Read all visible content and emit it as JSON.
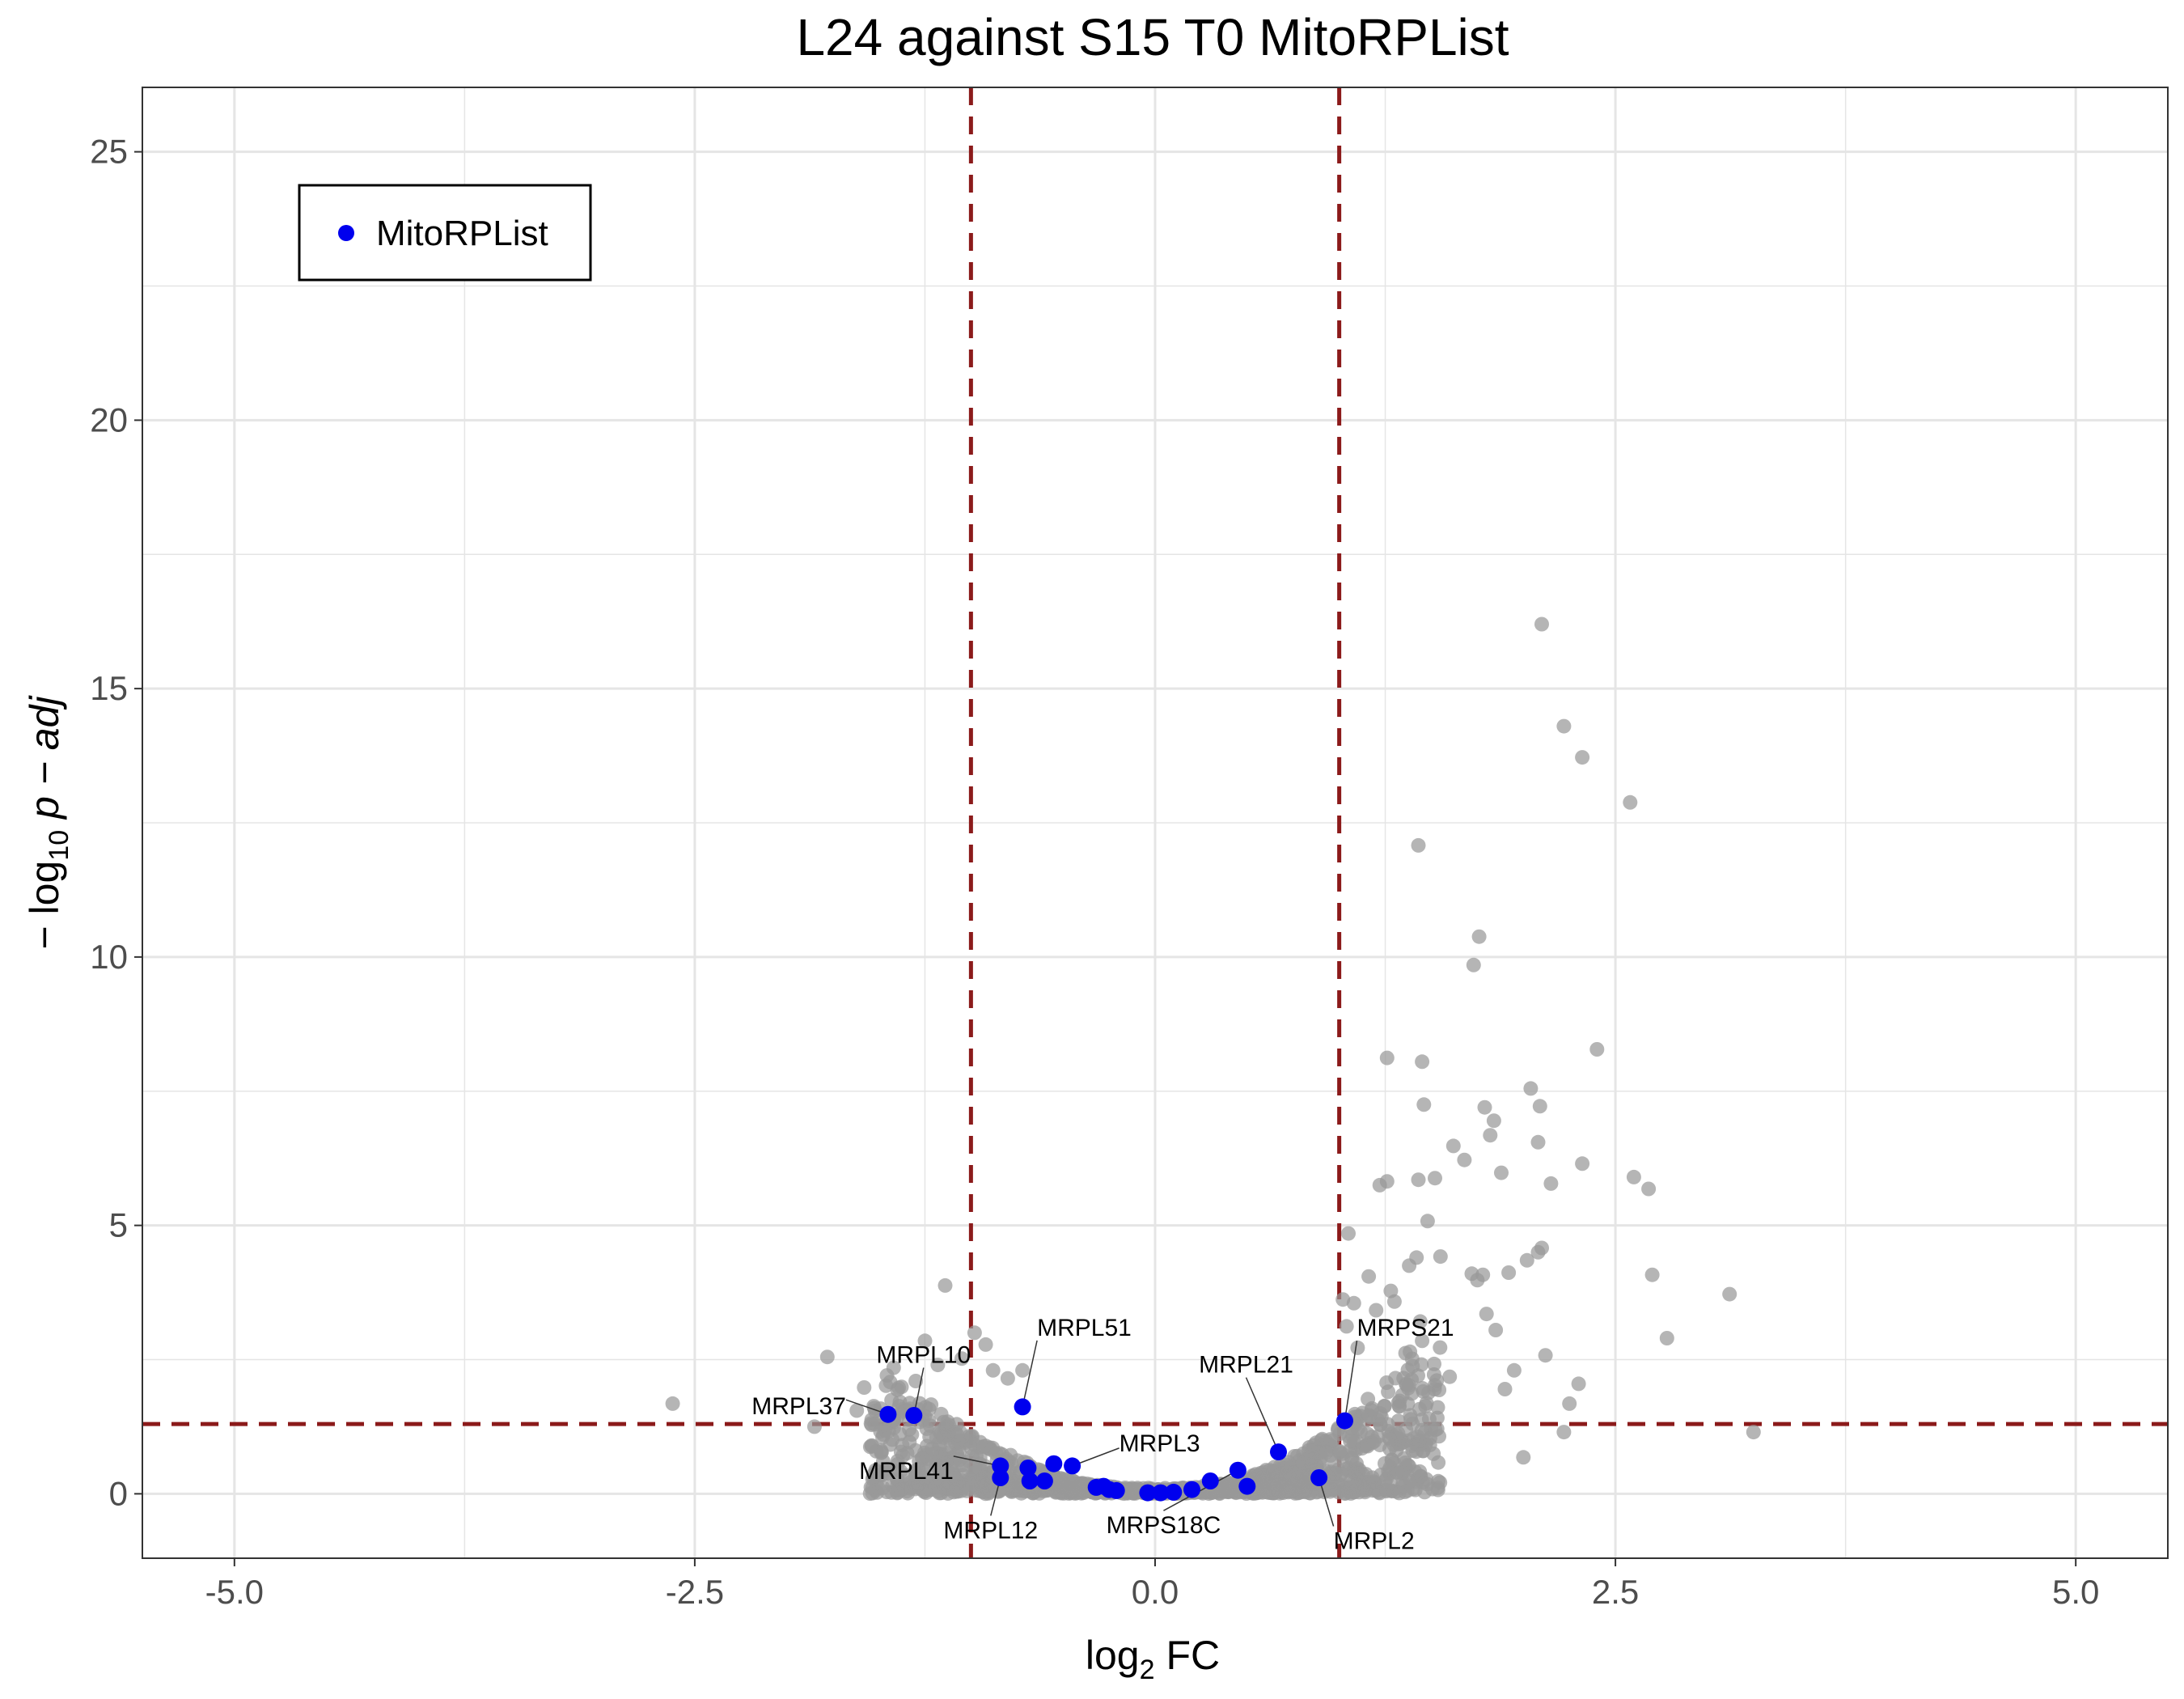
{
  "chart_data": {
    "type": "scatter",
    "title": "L24 against S15 T0 MitoRPList",
    "xlabel": {
      "main": "log",
      "sub": "2",
      "suffix": " FC"
    },
    "ylabel": {
      "prefix": "− log",
      "sub": "10",
      "suffix": " p − adj"
    },
    "xlim": [
      -5.5,
      5.5
    ],
    "ylim": [
      -1.2,
      26.2
    ],
    "x_ticks": [
      {
        "value": -5.0,
        "label": "-5.0"
      },
      {
        "value": -2.5,
        "label": "-2.5"
      },
      {
        "value": 0.0,
        "label": "0.0"
      },
      {
        "value": 2.5,
        "label": "2.5"
      },
      {
        "value": 5.0,
        "label": "5.0"
      }
    ],
    "y_ticks": [
      {
        "value": 0,
        "label": "0"
      },
      {
        "value": 5,
        "label": "5"
      },
      {
        "value": 10,
        "label": "10"
      },
      {
        "value": 15,
        "label": "15"
      },
      {
        "value": 20,
        "label": "20"
      },
      {
        "value": 25,
        "label": "25"
      }
    ],
    "grid": true,
    "thresholds": {
      "x": [
        -1.0,
        1.0
      ],
      "y": 1.3
    },
    "colors": {
      "background_points": "#999999",
      "highlight_points": "#0000ee",
      "threshold_lines": "#8b1a1a",
      "grid": "#e5e5e5"
    },
    "legend": {
      "position": "top-left",
      "entries": [
        "MitoRPList"
      ]
    },
    "series": [
      {
        "name": "MitoRPList",
        "points": [
          [
            -1.45,
            1.48
          ],
          [
            -1.31,
            1.46
          ],
          [
            -0.72,
            1.62
          ],
          [
            -0.84,
            0.52
          ],
          [
            -0.84,
            0.3
          ],
          [
            -0.69,
            0.48
          ],
          [
            -0.68,
            0.24
          ],
          [
            -0.6,
            0.24
          ],
          [
            -0.55,
            0.56
          ],
          [
            -0.45,
            0.52
          ],
          [
            -0.32,
            0.12
          ],
          [
            -0.28,
            0.14
          ],
          [
            -0.25,
            0.08
          ],
          [
            -0.21,
            0.06
          ],
          [
            -0.04,
            0.02
          ],
          [
            0.03,
            0.02
          ],
          [
            0.1,
            0.03
          ],
          [
            0.2,
            0.08
          ],
          [
            0.3,
            0.24
          ],
          [
            0.45,
            0.44
          ],
          [
            0.5,
            0.14
          ],
          [
            0.67,
            0.78
          ],
          [
            0.89,
            0.3
          ],
          [
            1.03,
            1.36
          ]
        ],
        "labels": [
          {
            "gene": "MRPL37",
            "x": -1.45,
            "y": 1.48
          },
          {
            "gene": "MRPL10",
            "x": -1.31,
            "y": 1.46
          },
          {
            "gene": "MRPL51",
            "x": -0.72,
            "y": 1.62
          },
          {
            "gene": "MRPL3",
            "x": -0.45,
            "y": 0.52
          },
          {
            "gene": "MRPL41",
            "x": -0.84,
            "y": 0.52
          },
          {
            "gene": "MRPL12",
            "x": -0.84,
            "y": 0.3
          },
          {
            "gene": "MRPS18C",
            "x": 0.45,
            "y": 0.44
          },
          {
            "gene": "MRPL21",
            "x": 0.67,
            "y": 0.78
          },
          {
            "gene": "MRPS21",
            "x": 1.03,
            "y": 1.36
          },
          {
            "gene": "MRPL2",
            "x": 0.89,
            "y": 0.3
          }
        ]
      }
    ],
    "background_outliers": [
      [
        -2.62,
        1.68
      ],
      [
        -1.85,
        1.25
      ],
      [
        -1.78,
        2.55
      ],
      [
        -1.62,
        1.55
      ],
      [
        -1.58,
        1.98
      ],
      [
        -1.48,
        1.28
      ],
      [
        -1.42,
        2.35
      ],
      [
        -1.3,
        2.1
      ],
      [
        -1.25,
        2.85
      ],
      [
        -1.18,
        2.4
      ],
      [
        -1.15,
        1.05
      ],
      [
        -1.14,
        3.88
      ],
      [
        -1.05,
        2.52
      ],
      [
        -0.98,
        3.0
      ],
      [
        -0.92,
        2.78
      ],
      [
        -0.88,
        2.3
      ],
      [
        -0.8,
        2.15
      ],
      [
        -0.72,
        2.3
      ],
      [
        1.02,
        3.62
      ],
      [
        1.04,
        3.12
      ],
      [
        1.05,
        4.85
      ],
      [
        1.08,
        3.55
      ],
      [
        1.1,
        2.72
      ],
      [
        1.16,
        4.05
      ],
      [
        1.2,
        3.42
      ],
      [
        1.22,
        5.75
      ],
      [
        1.26,
        5.82
      ],
      [
        1.28,
        3.78
      ],
      [
        1.3,
        3.58
      ],
      [
        1.36,
        2.62
      ],
      [
        1.38,
        4.25
      ],
      [
        1.42,
        4.4
      ],
      [
        1.43,
        5.85
      ],
      [
        1.44,
        3.21
      ],
      [
        1.45,
        2.85
      ],
      [
        1.48,
        5.08
      ],
      [
        1.52,
        5.88
      ],
      [
        1.55,
        4.42
      ],
      [
        1.6,
        2.18
      ],
      [
        1.62,
        6.48
      ],
      [
        1.68,
        6.22
      ],
      [
        1.72,
        4.1
      ],
      [
        1.75,
        3.98
      ],
      [
        1.78,
        4.08
      ],
      [
        1.8,
        3.35
      ],
      [
        1.82,
        6.68
      ],
      [
        1.85,
        3.05
      ],
      [
        1.88,
        5.98
      ],
      [
        1.9,
        1.95
      ],
      [
        1.92,
        4.12
      ],
      [
        1.95,
        2.3
      ],
      [
        2.0,
        0.68
      ],
      [
        2.02,
        4.35
      ],
      [
        2.08,
        4.5
      ],
      [
        2.1,
        4.58
      ],
      [
        2.12,
        2.58
      ],
      [
        2.15,
        5.78
      ],
      [
        2.22,
        1.15
      ],
      [
        2.25,
        1.68
      ],
      [
        2.3,
        2.05
      ],
      [
        2.32,
        6.15
      ],
      [
        1.26,
        8.12
      ],
      [
        1.45,
        8.05
      ],
      [
        1.46,
        7.25
      ],
      [
        1.43,
        12.08
      ],
      [
        1.73,
        9.85
      ],
      [
        1.76,
        10.38
      ],
      [
        1.79,
        7.2
      ],
      [
        1.84,
        6.95
      ],
      [
        2.04,
        7.55
      ],
      [
        2.08,
        6.55
      ],
      [
        2.09,
        7.22
      ],
      [
        2.1,
        16.2
      ],
      [
        2.22,
        14.3
      ],
      [
        2.32,
        13.72
      ],
      [
        2.4,
        8.28
      ],
      [
        2.58,
        12.88
      ],
      [
        2.6,
        5.9
      ],
      [
        2.68,
        5.68
      ],
      [
        2.7,
        4.08
      ],
      [
        2.78,
        2.9
      ],
      [
        3.12,
        3.72
      ],
      [
        3.25,
        1.15
      ]
    ],
    "cloud_regions": [
      {
        "x": [
          -1.5,
          -0.3
        ],
        "y_peak": 1.6
      },
      {
        "x": [
          -0.3,
          0.3
        ],
        "y_peak": 0.2
      },
      {
        "x": [
          0.3,
          1.6
        ],
        "y_peak": 2.4
      }
    ],
    "legend_label": "MitoRPList"
  }
}
